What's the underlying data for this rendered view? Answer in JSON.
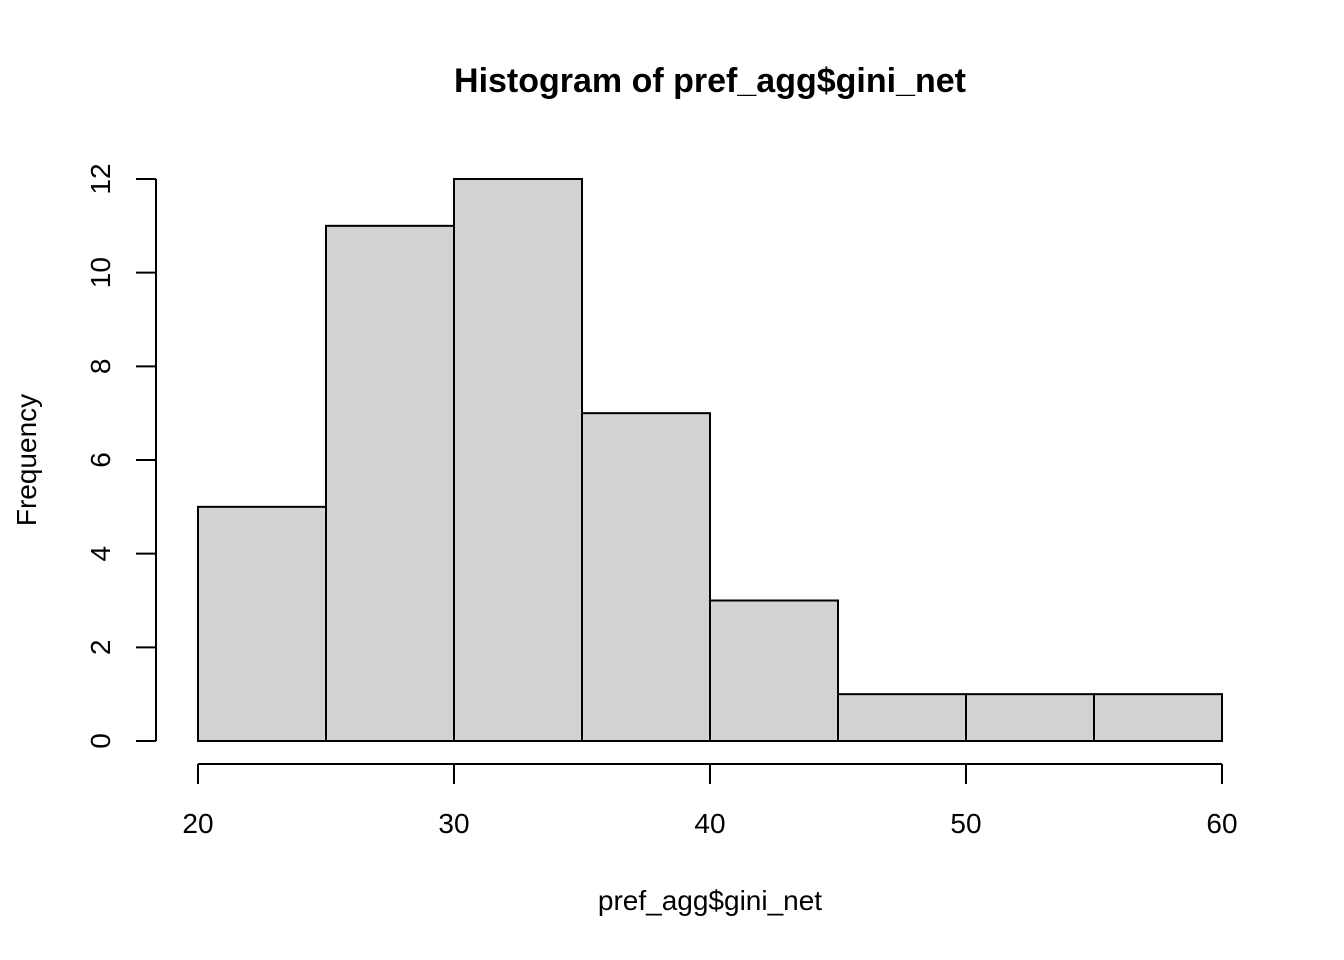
{
  "chart_data": {
    "type": "bar",
    "title": "Histogram of pref_agg$gini_net",
    "xlabel": "pref_agg$gini_net",
    "ylabel": "Frequency",
    "bins": [
      {
        "from": 20,
        "to": 25,
        "count": 5
      },
      {
        "from": 25,
        "to": 30,
        "count": 11
      },
      {
        "from": 30,
        "to": 35,
        "count": 12
      },
      {
        "from": 35,
        "to": 40,
        "count": 7
      },
      {
        "from": 40,
        "to": 45,
        "count": 3
      },
      {
        "from": 45,
        "to": 50,
        "count": 1
      },
      {
        "from": 50,
        "to": 55,
        "count": 1
      },
      {
        "from": 55,
        "to": 60,
        "count": 1
      }
    ],
    "x_ticks": [
      "20",
      "30",
      "40",
      "50",
      "60"
    ],
    "y_ticks": [
      "0",
      "2",
      "4",
      "6",
      "8",
      "10",
      "12"
    ],
    "xlim": [
      20,
      60
    ],
    "ylim": [
      0,
      12
    ],
    "grid": false,
    "colors": {
      "bar_fill": "#d3d3d3",
      "bar_stroke": "#000000"
    }
  }
}
